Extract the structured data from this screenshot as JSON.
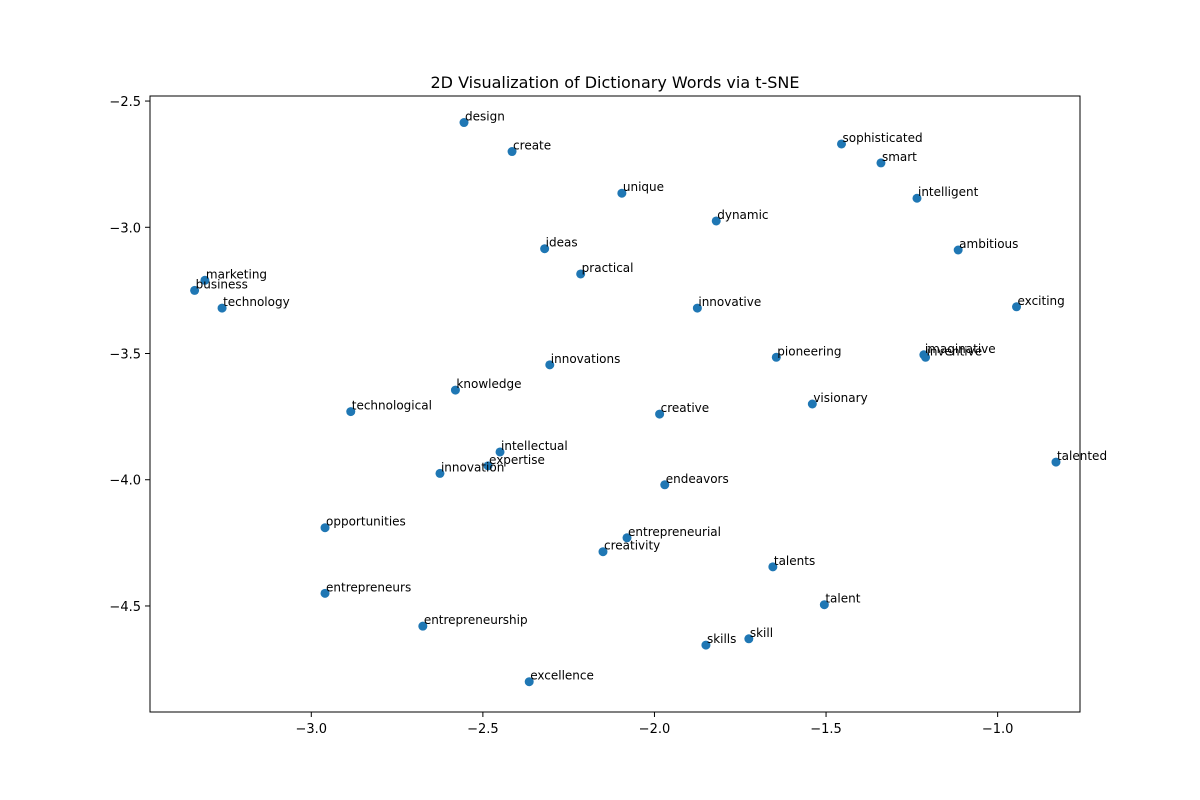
{
  "chart_data": {
    "type": "scatter",
    "title": "2D Visualization of Dictionary Words via t-SNE",
    "xlabel": "",
    "ylabel": "",
    "xlim": [
      -3.47,
      -0.76
    ],
    "ylim": [
      -4.92,
      -2.48
    ],
    "xticks": [
      -3.0,
      -2.5,
      -2.0,
      -1.5,
      -1.0
    ],
    "xtick_labels": [
      "−3.0",
      "−2.5",
      "−2.0",
      "−1.5",
      "−1.0"
    ],
    "yticks": [
      -2.5,
      -3.0,
      -3.5,
      -4.0,
      -4.5
    ],
    "ytick_labels": [
      "−2.5",
      "−3.0",
      "−3.5",
      "−4.0",
      "−4.5"
    ],
    "grid": false,
    "color": "#1f77b4",
    "points": [
      {
        "label": "design",
        "x": -2.555,
        "y": -2.585
      },
      {
        "label": "create",
        "x": -2.415,
        "y": -2.7
      },
      {
        "label": "unique",
        "x": -2.095,
        "y": -2.865
      },
      {
        "label": "sophisticated",
        "x": -1.455,
        "y": -2.67
      },
      {
        "label": "smart",
        "x": -1.34,
        "y": -2.745
      },
      {
        "label": "intelligent",
        "x": -1.235,
        "y": -2.885
      },
      {
        "label": "dynamic",
        "x": -1.82,
        "y": -2.975
      },
      {
        "label": "ideas",
        "x": -2.32,
        "y": -3.085
      },
      {
        "label": "ambitious",
        "x": -1.115,
        "y": -3.09
      },
      {
        "label": "practical",
        "x": -2.215,
        "y": -3.185
      },
      {
        "label": "marketing",
        "x": -3.31,
        "y": -3.21
      },
      {
        "label": "business",
        "x": -3.34,
        "y": -3.25
      },
      {
        "label": "technology",
        "x": -3.26,
        "y": -3.32
      },
      {
        "label": "innovative",
        "x": -1.875,
        "y": -3.32
      },
      {
        "label": "exciting",
        "x": -0.945,
        "y": -3.315
      },
      {
        "label": "imaginative",
        "x": -1.215,
        "y": -3.505
      },
      {
        "label": "inventive",
        "x": -1.21,
        "y": -3.515
      },
      {
        "label": "pioneering",
        "x": -1.645,
        "y": -3.515
      },
      {
        "label": "innovations",
        "x": -2.305,
        "y": -3.545
      },
      {
        "label": "knowledge",
        "x": -2.58,
        "y": -3.645
      },
      {
        "label": "visionary",
        "x": -1.54,
        "y": -3.7
      },
      {
        "label": "technological",
        "x": -2.885,
        "y": -3.73
      },
      {
        "label": "creative",
        "x": -1.985,
        "y": -3.74
      },
      {
        "label": "intellectual",
        "x": -2.45,
        "y": -3.89
      },
      {
        "label": "talented",
        "x": -0.83,
        "y": -3.93
      },
      {
        "label": "expertise",
        "x": -2.485,
        "y": -3.945
      },
      {
        "label": "innovation",
        "x": -2.625,
        "y": -3.975
      },
      {
        "label": "endeavors",
        "x": -1.97,
        "y": -4.02
      },
      {
        "label": "opportunities",
        "x": -2.96,
        "y": -4.19
      },
      {
        "label": "entrepreneurial",
        "x": -2.08,
        "y": -4.23
      },
      {
        "label": "creativity",
        "x": -2.15,
        "y": -4.285
      },
      {
        "label": "talents",
        "x": -1.655,
        "y": -4.345
      },
      {
        "label": "entrepreneurs",
        "x": -2.96,
        "y": -4.45
      },
      {
        "label": "talent",
        "x": -1.505,
        "y": -4.495
      },
      {
        "label": "entrepreneurship",
        "x": -2.675,
        "y": -4.58
      },
      {
        "label": "skill",
        "x": -1.725,
        "y": -4.63
      },
      {
        "label": "skills",
        "x": -1.85,
        "y": -4.655
      },
      {
        "label": "excellence",
        "x": -2.365,
        "y": -4.8
      }
    ]
  }
}
